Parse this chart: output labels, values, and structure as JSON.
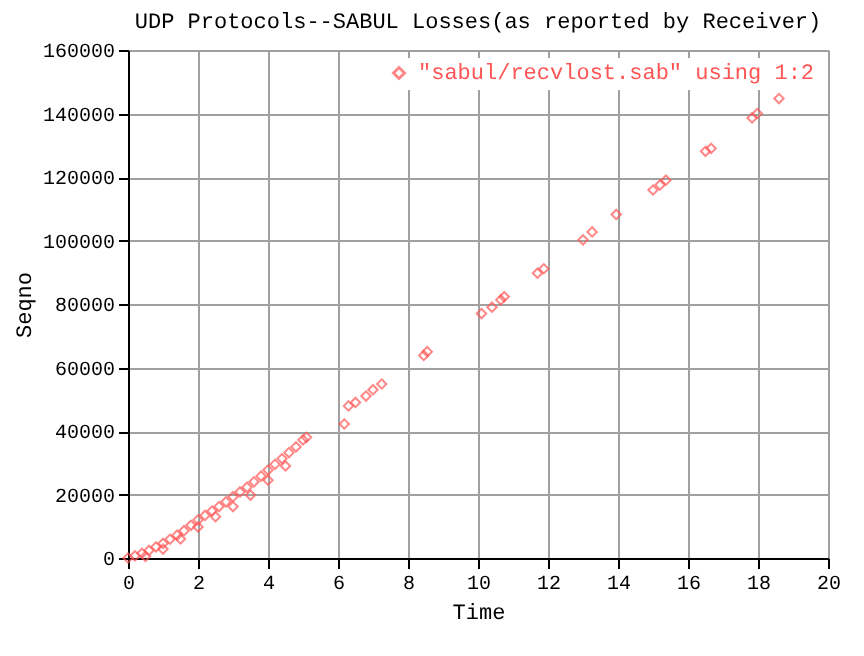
{
  "chart_data": {
    "type": "scatter",
    "title": "UDP Protocols--SABUL Losses(as reported by Receiver)",
    "xlabel": "Time",
    "ylabel": "Seqno",
    "xlim": [
      0,
      20
    ],
    "xticks": [
      0,
      2,
      4,
      6,
      8,
      10,
      12,
      14,
      16,
      18,
      20
    ],
    "ylim": [
      0,
      160000
    ],
    "yticks": [
      0,
      20000,
      40000,
      60000,
      80000,
      100000,
      120000,
      140000,
      160000
    ],
    "grid": true,
    "legend": "top right",
    "marker": "diamond",
    "series": [
      {
        "name": "\"sabul/recvlost.sab\" using 1:2",
        "color": "#ff5555",
        "x": [
          0,
          0.2,
          0.4,
          0.6,
          0.8,
          1.0,
          1.2,
          1.4,
          1.6,
          1.8,
          2.0,
          2.2,
          2.4,
          2.6,
          2.8,
          3.0,
          3.2,
          3.4,
          3.6,
          3.8,
          4.0,
          4.2,
          4.4,
          4.6,
          4.8,
          5.0,
          5.1,
          0.5,
          1.0,
          1.5,
          2.0,
          2.5,
          3.0,
          3.5,
          4.0,
          4.5,
          6.18,
          6.3,
          6.5,
          6.8,
          7.0,
          7.25,
          8.45,
          8.55,
          10.1,
          10.4,
          10.65,
          10.75,
          11.7,
          11.88,
          13.0,
          13.26,
          13.95,
          15.0,
          15.2,
          15.37,
          16.5,
          16.66,
          17.83,
          17.98,
          18.6
        ],
        "values": [
          0,
          700,
          1500,
          2400,
          3500,
          4600,
          5900,
          7200,
          8600,
          10300,
          12000,
          13400,
          14800,
          16200,
          17700,
          19300,
          20800,
          22300,
          24000,
          25800,
          27700,
          29500,
          31300,
          33200,
          35000,
          37200,
          38000,
          500,
          2800,
          6000,
          9800,
          13000,
          16200,
          19800,
          24500,
          29000,
          42200,
          47900,
          49000,
          51000,
          53000,
          54800,
          63800,
          65000,
          77000,
          79000,
          81300,
          82300,
          89700,
          91100,
          100200,
          102700,
          108200,
          115900,
          117500,
          119000,
          128100,
          129000,
          138600,
          140000,
          144700
        ]
      }
    ]
  }
}
